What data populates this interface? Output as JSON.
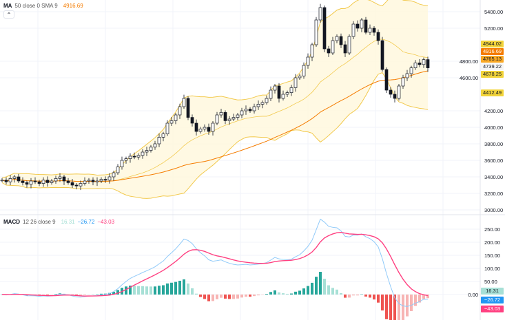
{
  "legend_main": {
    "name": "MA",
    "params": "50 close 0 SMA 9",
    "value": "4916.69",
    "value_color": "#f57c00"
  },
  "legend_macd": {
    "name": "MACD",
    "params": "12 26 close 9",
    "hist": "16.31",
    "macd": "−26.72",
    "signal": "−43.03"
  },
  "collapse_icon": "chevron-up-icon",
  "colors": {
    "up": "#26a69a",
    "down": "#ef5350",
    "candle": "#131722",
    "ma": "#f57c00",
    "band": "#f2c94c",
    "band_fill": "#fff8dc",
    "macd": "#2196f3",
    "signal": "#ff4081"
  },
  "price_tags": [
    {
      "text": "4944.02",
      "price": 4944.02,
      "bg": "#f2d43a",
      "fg": "#131722"
    },
    {
      "text": "4916.69",
      "price": 4916.69,
      "bg": "#f57c00",
      "fg": "#ffffff"
    },
    {
      "text": "4765.13",
      "price": 4765.13,
      "bg": "#f9a825",
      "fg": "#131722"
    },
    {
      "text": "4739.22",
      "price": 4739.22,
      "bg": "#f5f5f5",
      "fg": "#131722"
    },
    {
      "text": "4678.25",
      "price": 4678.25,
      "bg": "#f2d43a",
      "fg": "#131722"
    },
    {
      "text": "4412.49",
      "price": 4412.49,
      "bg": "#f2d43a",
      "fg": "#131722"
    }
  ],
  "macd_tags": [
    {
      "text": "16.31",
      "value": 16.31,
      "bg": "#a7e0d6",
      "fg": "#131722"
    },
    {
      "text": "−26.72",
      "value": -26.72,
      "bg": "#2196f3",
      "fg": "#ffffff"
    },
    {
      "text": "−43.03",
      "value": -43.03,
      "bg": "#ff4081",
      "fg": "#ffffff"
    }
  ],
  "chart_data": [
    {
      "type": "candlestick",
      "title": "",
      "yticks": [
        "5400.00",
        "5200.00",
        "4800.00",
        "4600.00",
        "4200.00",
        "4000.00",
        "3800.00",
        "3600.00",
        "3400.00",
        "3200.00",
        "3000.00"
      ],
      "ytick_values": [
        5400,
        5200,
        4800,
        4600,
        4200,
        4000,
        3800,
        3600,
        3400,
        3200,
        3000
      ],
      "ylim": [
        3000,
        5400
      ],
      "grid": true,
      "closes": [
        3360,
        3340,
        3380,
        3400,
        3350,
        3330,
        3310,
        3350,
        3340,
        3320,
        3360,
        3330,
        3350,
        3380,
        3400,
        3350,
        3330,
        3300,
        3290,
        3320,
        3350,
        3360,
        3340,
        3350,
        3370,
        3360,
        3400,
        3450,
        3520,
        3600,
        3620,
        3650,
        3640,
        3660,
        3700,
        3720,
        3760,
        3800,
        3880,
        3920,
        4050,
        4080,
        4150,
        4250,
        4350,
        4120,
        4050,
        3950,
        3980,
        4000,
        3950,
        4050,
        4150,
        4180,
        4080,
        4100,
        4120,
        4150,
        4200,
        4220,
        4200,
        4250,
        4280,
        4300,
        4350,
        4450,
        4500,
        4350,
        4400,
        4420,
        4480,
        4600,
        4620,
        4750,
        4850,
        4100,
        5300,
        5450,
        4950,
        4900,
        5050,
        5100,
        5000,
        4900,
        5100,
        5250,
        5200,
        5300,
        5150,
        5200,
        5150,
        5050,
        4700,
        4450,
        4400,
        4350,
        4500,
        4600,
        4650,
        4720,
        4780,
        4760,
        4820,
        4720
      ],
      "overlays": [
        "SMA 50",
        "Bollinger Bands"
      ]
    },
    {
      "type": "macd",
      "yticks": [
        "250.00",
        "200.00",
        "150.00",
        "100.00",
        "50.00",
        "0.00"
      ],
      "ytick_values": [
        250,
        200,
        150,
        100,
        50,
        0
      ],
      "params": [
        12,
        26,
        9
      ]
    }
  ]
}
